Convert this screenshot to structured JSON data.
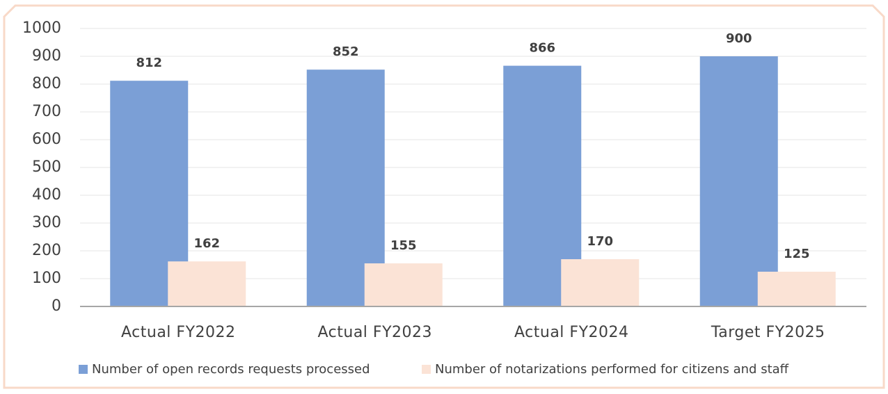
{
  "chart_data": {
    "type": "bar",
    "categories": [
      "Actual FY2022",
      "Actual FY2023",
      "Actual FY2024",
      "Target FY2025"
    ],
    "series": [
      {
        "name": "Number of open records requests processed",
        "color": "#7b9fd6",
        "values": [
          812,
          852,
          866,
          900
        ]
      },
      {
        "name": "Number of notarizations performed for citizens and staff",
        "color": "#fbe3d6",
        "values": [
          162,
          155,
          170,
          125
        ]
      }
    ],
    "ylim": [
      0,
      1000
    ],
    "yticks": [
      0,
      100,
      200,
      300,
      400,
      500,
      600,
      700,
      800,
      900,
      1000
    ],
    "grid": true,
    "legend": "bottom"
  }
}
